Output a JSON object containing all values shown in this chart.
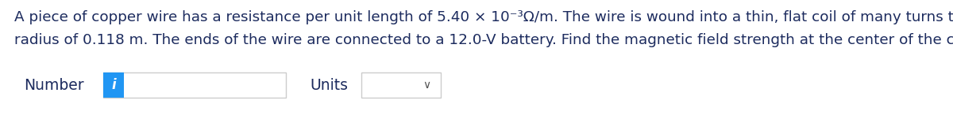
{
  "background_color": "#ffffff",
  "text_line1": "A piece of copper wire has a resistance per unit length of 5.40 × 10⁻³Ω/m. The wire is wound into a thin, flat coil of many turns that has a",
  "text_line2": "radius of 0.118 m. The ends of the wire are connected to a 12.0-V battery. Find the magnetic field strength at the center of the coil.",
  "text_color": "#1c2b5e",
  "text_fontsize": 13.2,
  "number_label": "Number",
  "units_label": "Units",
  "label_fontsize": 13.5,
  "label_color": "#1c2b5e",
  "blue_box_color": "#2196f3",
  "chevron_char": "∨",
  "i_char": "i"
}
